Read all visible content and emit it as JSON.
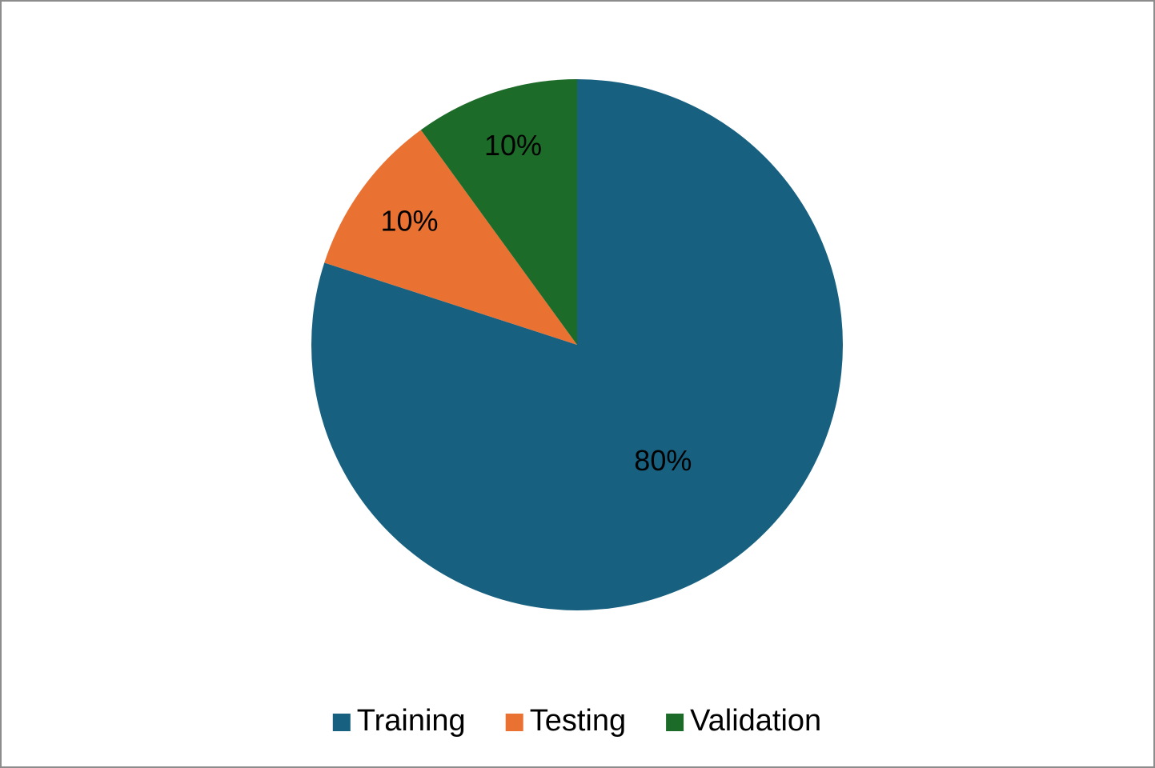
{
  "chart_data": {
    "type": "pie",
    "categories": [
      "Training",
      "Testing",
      "Validation"
    ],
    "values": [
      80,
      10,
      10
    ],
    "value_labels": [
      "80%",
      "10%",
      "10%"
    ],
    "colors": [
      "#17607f",
      "#e97132",
      "#1c6b28"
    ],
    "legend": "bottom"
  }
}
